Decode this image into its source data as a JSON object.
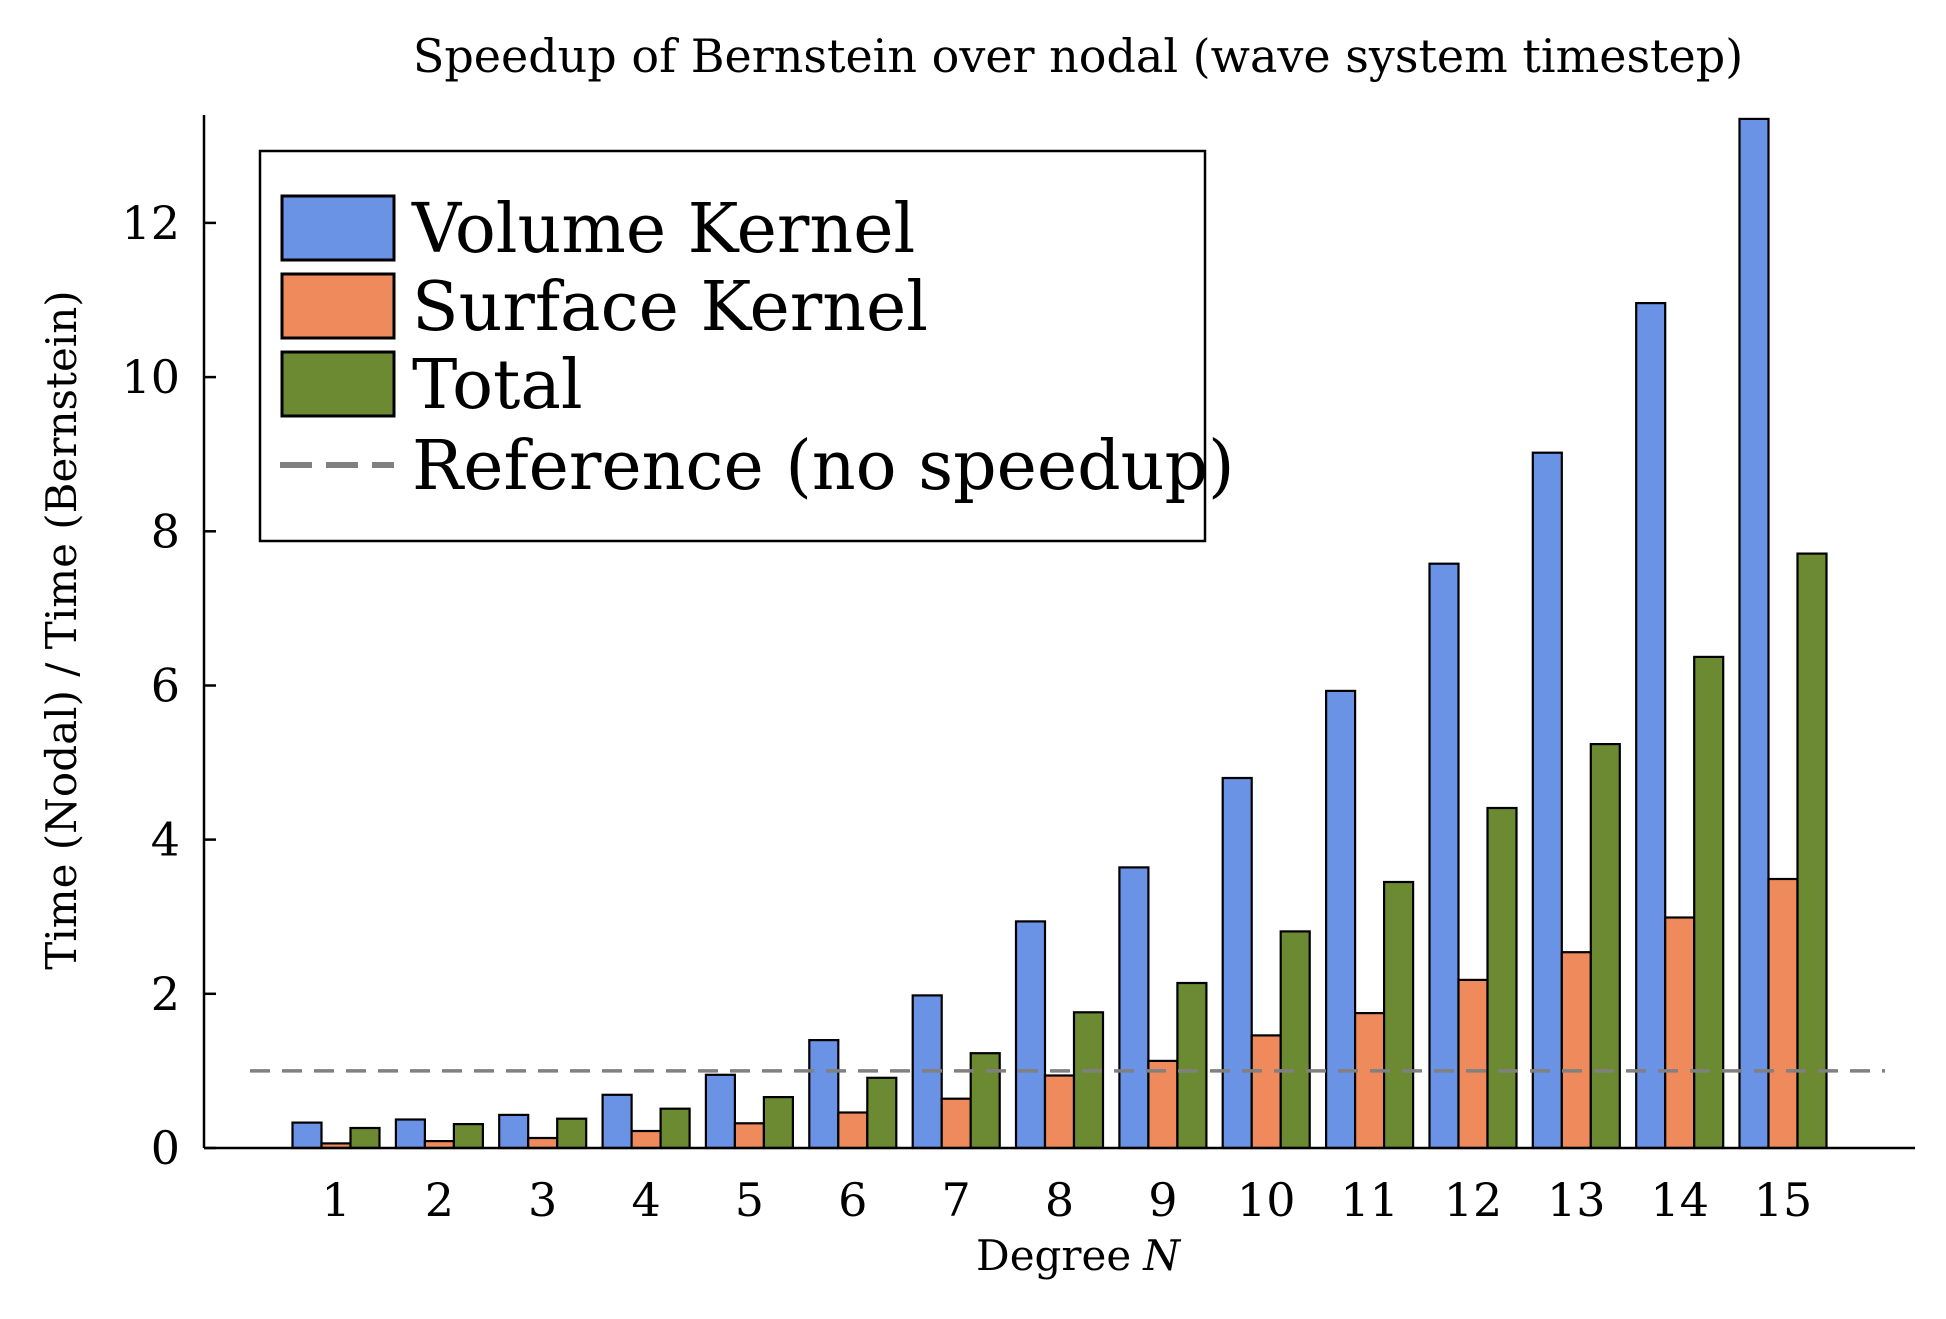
{
  "chart_data": {
    "type": "bar",
    "title": "Speedup of Bernstein over nodal (wave system timestep)",
    "xlabel": "Degree",
    "xlabel_var": "N",
    "ylabel": "Time (Nodal) / Time (Bernstein)",
    "categories": [
      "1",
      "2",
      "3",
      "4",
      "5",
      "6",
      "7",
      "8",
      "9",
      "10",
      "11",
      "12",
      "13",
      "14",
      "15"
    ],
    "ylim": [
      0,
      13.4
    ],
    "yticks": [
      0,
      2,
      4,
      6,
      8,
      10,
      12
    ],
    "grid": false,
    "legend_position": "top-left",
    "series": [
      {
        "name": "Volume Kernel",
        "color": "#6a93e6",
        "values": [
          0.33,
          0.37,
          0.43,
          0.69,
          0.95,
          1.4,
          1.98,
          2.94,
          3.64,
          4.8,
          5.93,
          7.58,
          9.02,
          10.96,
          13.35
        ]
      },
      {
        "name": "Surface Kernel",
        "color": "#ee8a5c",
        "values": [
          0.06,
          0.09,
          0.13,
          0.22,
          0.32,
          0.46,
          0.64,
          0.94,
          1.13,
          1.46,
          1.75,
          2.18,
          2.54,
          2.99,
          3.49
        ]
      },
      {
        "name": "Total",
        "color": "#6b8a32",
        "values": [
          0.26,
          0.31,
          0.38,
          0.51,
          0.66,
          0.91,
          1.23,
          1.76,
          2.14,
          2.81,
          3.45,
          4.41,
          5.24,
          6.37,
          7.71
        ]
      }
    ],
    "reference": {
      "name": "Reference (no speedup)",
      "value": 1.0,
      "color": "#808080",
      "style": "dashed"
    }
  }
}
